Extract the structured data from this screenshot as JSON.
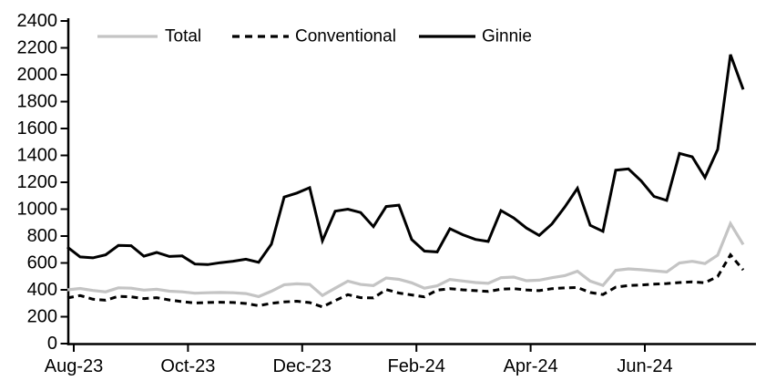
{
  "page": {
    "background": "#ffffff"
  },
  "chart_data": {
    "type": "line",
    "title": "",
    "grid": "off",
    "legend": {
      "position": "top",
      "entries": [
        "Total",
        "Conventional",
        "Ginnie"
      ]
    },
    "x_axis": {
      "tick_labels": [
        "Aug-23",
        "Oct-23",
        "Dec-23",
        "Feb-24",
        "Apr-24",
        "Jun-24"
      ],
      "tick_month_offsets": [
        0,
        2,
        4,
        6,
        8,
        10
      ]
    },
    "y_axis": {
      "min": 0,
      "max": 2400,
      "tick_step": 200,
      "tick_labels": [
        "0",
        "200",
        "400",
        "600",
        "800",
        "1000",
        "1200",
        "1400",
        "1600",
        "1800",
        "2000",
        "2200",
        "2400"
      ]
    },
    "series": [
      {
        "name": "Total",
        "color": "#c4c4c4",
        "line_style": "solid",
        "values": [
          400,
          410,
          395,
          385,
          415,
          412,
          398,
          405,
          390,
          385,
          375,
          378,
          380,
          378,
          372,
          350,
          390,
          438,
          445,
          440,
          358,
          412,
          465,
          440,
          432,
          488,
          478,
          452,
          412,
          430,
          477,
          466,
          454,
          448,
          490,
          495,
          468,
          472,
          490,
          505,
          538,
          465,
          433,
          545,
          556,
          550,
          542,
          533,
          600,
          612,
          595,
          658,
          893,
          737
        ]
      },
      {
        "name": "Conventional",
        "color": "#000000",
        "line_style": "dashed",
        "values": [
          340,
          357,
          330,
          323,
          352,
          348,
          335,
          342,
          325,
          312,
          302,
          306,
          308,
          306,
          298,
          282,
          300,
          310,
          315,
          305,
          273,
          320,
          364,
          342,
          340,
          402,
          376,
          362,
          348,
          398,
          409,
          400,
          394,
          388,
          405,
          409,
          399,
          394,
          409,
          414,
          417,
          380,
          365,
          420,
          432,
          436,
          442,
          447,
          454,
          459,
          453,
          500,
          660,
          548
        ]
      },
      {
        "name": "Ginnie",
        "color": "#000000",
        "line_style": "solid",
        "values": [
          718,
          645,
          638,
          660,
          730,
          728,
          650,
          678,
          648,
          652,
          592,
          588,
          602,
          613,
          628,
          605,
          740,
          1090,
          1120,
          1160,
          765,
          985,
          1000,
          975,
          870,
          1020,
          1030,
          775,
          688,
          682,
          855,
          810,
          775,
          760,
          990,
          935,
          860,
          805,
          890,
          1015,
          1155,
          880,
          835,
          1290,
          1300,
          1210,
          1095,
          1065,
          1415,
          1390,
          1235,
          1445,
          2150,
          1890
        ]
      }
    ]
  }
}
